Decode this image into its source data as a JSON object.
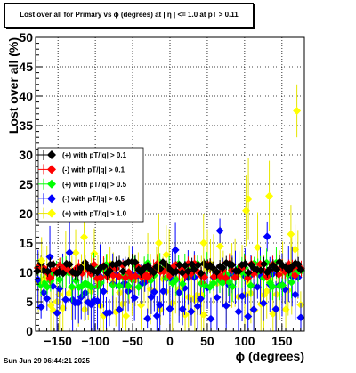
{
  "chart_data": {
    "type": "scatter",
    "title": "Lost over all for Primary vs ϕ (degrees) at |  η  | <= 1.0 at pT > 0.11",
    "xlabel": "ϕ (degrees)",
    "ylabel": "Lost over all (%)",
    "xlim": [
      -180,
      180
    ],
    "ylim": [
      0,
      50
    ],
    "x_ticks": [
      -150,
      -100,
      -50,
      0,
      50,
      100,
      150
    ],
    "y_ticks": [
      0,
      5,
      10,
      15,
      20,
      25,
      30,
      35,
      40,
      45,
      50
    ],
    "grid": true,
    "legend_position": "left, middle",
    "series": [
      {
        "name": "(+) with pT/|q| > 0.1",
        "color": "#000000"
      },
      {
        "name": "(-) with pT/|q| > 0.1",
        "color": "#ff0000"
      },
      {
        "name": "(+) with pT/|q| > 0.5",
        "color": "#00ff00"
      },
      {
        "name": "(-) with pT/|q| > 0.5",
        "color": "#0000ff"
      },
      {
        "name": "(+) with pT/|q| > 1.0",
        "color": "#ffff00"
      }
    ]
  },
  "footer": "Sun Jun 29 06:44:21 2025"
}
